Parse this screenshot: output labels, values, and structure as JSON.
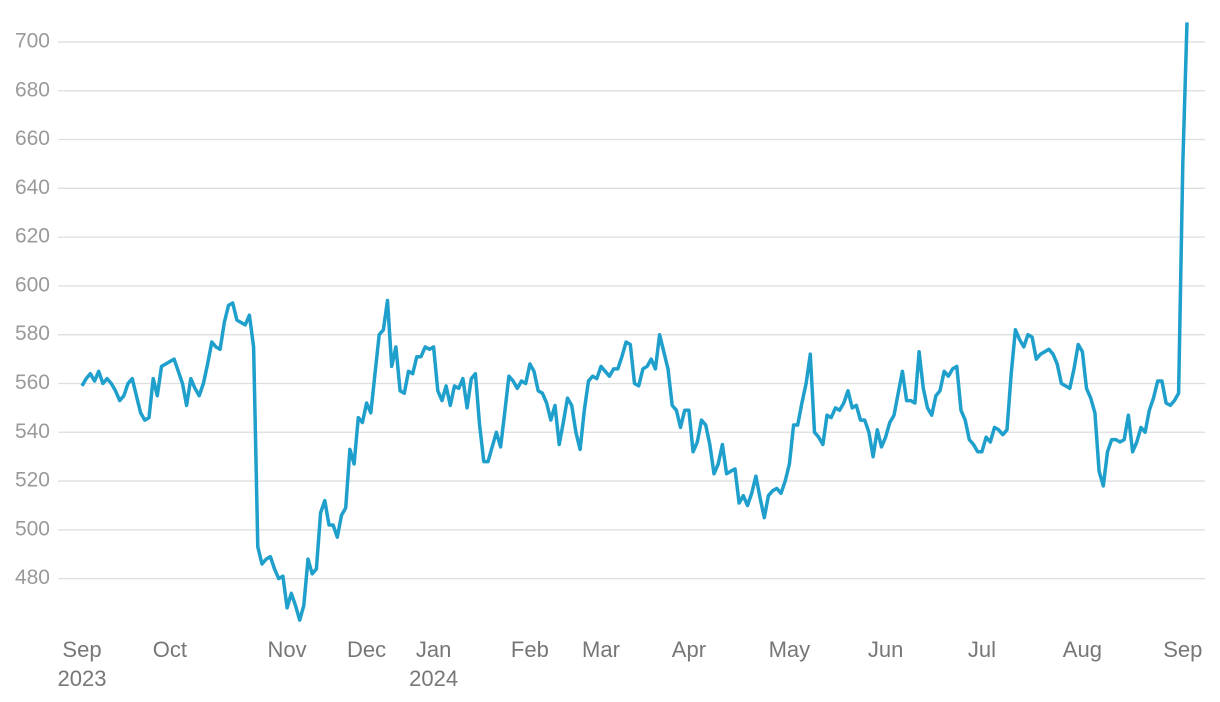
{
  "chart_data": {
    "type": "line",
    "categories": [
      "Sep 2023",
      null,
      null,
      null,
      null,
      null,
      null,
      null,
      null,
      null,
      null,
      null,
      null,
      null,
      null,
      null,
      null,
      null,
      null,
      null,
      null,
      "Oct",
      null,
      null,
      null,
      null,
      null,
      null,
      null,
      null,
      null,
      null,
      null,
      null,
      null,
      null,
      null,
      null,
      null,
      null,
      null,
      null,
      null,
      null,
      null,
      null,
      null,
      null,
      null,
      "Nov",
      null,
      null,
      null,
      null,
      null,
      null,
      null,
      null,
      null,
      null,
      null,
      null,
      null,
      null,
      null,
      null,
      null,
      null,
      "Dec",
      null,
      null,
      null,
      null,
      null,
      null,
      null,
      null,
      null,
      null,
      null,
      null,
      null,
      null,
      null,
      "Jan 2024",
      null,
      null,
      null,
      null,
      null,
      null,
      null,
      null,
      null,
      null,
      null,
      null,
      null,
      null,
      null,
      null,
      null,
      null,
      null,
      null,
      null,
      null,
      "Feb",
      null,
      null,
      null,
      null,
      null,
      null,
      null,
      null,
      null,
      null,
      null,
      null,
      null,
      null,
      null,
      null,
      "Mar",
      null,
      null,
      null,
      null,
      null,
      null,
      null,
      null,
      null,
      null,
      null,
      null,
      null,
      null,
      null,
      null,
      null,
      null,
      null,
      null,
      "Apr",
      null,
      null,
      null,
      null,
      null,
      null,
      null,
      null,
      null,
      null,
      null,
      null,
      null,
      null,
      null,
      null,
      null,
      null,
      null,
      null,
      null,
      null,
      null,
      "May",
      null,
      null,
      null,
      null,
      null,
      null,
      null,
      null,
      null,
      null,
      null,
      null,
      null,
      null,
      null,
      null,
      null,
      null,
      null,
      null,
      null,
      null,
      "Jun",
      null,
      null,
      null,
      null,
      null,
      null,
      null,
      null,
      null,
      null,
      null,
      null,
      null,
      null,
      null,
      null,
      null,
      null,
      null,
      null,
      null,
      null,
      "Jul",
      null,
      null,
      null,
      null,
      null,
      null,
      null,
      null,
      null,
      null,
      null,
      null,
      null,
      null,
      null,
      null,
      null,
      null,
      null,
      null,
      null,
      null,
      null,
      "Aug",
      null,
      null,
      null,
      null,
      null,
      null,
      null,
      null,
      null,
      null,
      null,
      null,
      null,
      null,
      null,
      null,
      null,
      null,
      null,
      null,
      null,
      null,
      null,
      "Sep",
      null
    ],
    "values": [
      559,
      562,
      564,
      561,
      565,
      560,
      562,
      560,
      557,
      553,
      555,
      560,
      562,
      555,
      548,
      545,
      546,
      562,
      555,
      567,
      568,
      569,
      570,
      565,
      560,
      551,
      562,
      558,
      555,
      560,
      568,
      577,
      575,
      574,
      585,
      592,
      593,
      586,
      585,
      584,
      588,
      575,
      493,
      486,
      488,
      489,
      484,
      480,
      481,
      468,
      474,
      469,
      463,
      469,
      488,
      482,
      484,
      507,
      512,
      502,
      502,
      497,
      506,
      509,
      533,
      527,
      546,
      544,
      552,
      548,
      564,
      580,
      582,
      594,
      567,
      575,
      557,
      556,
      565,
      564,
      571,
      571,
      575,
      574,
      575,
      557,
      553,
      559,
      551,
      559,
      558,
      562,
      550,
      562,
      564,
      543,
      528,
      528,
      534,
      540,
      534,
      548,
      563,
      561,
      558,
      561,
      560,
      568,
      565,
      557,
      556,
      552,
      545,
      551,
      535,
      544,
      554,
      551,
      540,
      533,
      549,
      561,
      563,
      562,
      567,
      565,
      563,
      566,
      566,
      571,
      577,
      576,
      560,
      559,
      566,
      567,
      570,
      566,
      580,
      573,
      566,
      551,
      549,
      542,
      549,
      549,
      532,
      536,
      545,
      543,
      535,
      523,
      527,
      535,
      523,
      524,
      525,
      511,
      514,
      510,
      515,
      522,
      513,
      505,
      514,
      516,
      517,
      515,
      520,
      527,
      543,
      543,
      552,
      560,
      572,
      540,
      538,
      535,
      547,
      546,
      550,
      549,
      552,
      557,
      550,
      551,
      545,
      545,
      540,
      530,
      541,
      534,
      538,
      544,
      547,
      556,
      565,
      553,
      553,
      552,
      573,
      558,
      550,
      547,
      555,
      557,
      565,
      563,
      566,
      567,
      549,
      545,
      537,
      535,
      532,
      532,
      538,
      536,
      542,
      541,
      539,
      541,
      564,
      582,
      578,
      575,
      580,
      579,
      570,
      572,
      573,
      574,
      572,
      568,
      560,
      559,
      558,
      566,
      576,
      573,
      558,
      554,
      548,
      524,
      518,
      532,
      537,
      537,
      536,
      537,
      547,
      532,
      536,
      542,
      540,
      549,
      554,
      561,
      561,
      552,
      551,
      553,
      556,
      650,
      708
    ],
    "color": "#1f9fcb",
    "ylim": [
      461,
      709
    ],
    "yticks": [
      480,
      500,
      520,
      540,
      560,
      580,
      600,
      620,
      640,
      660,
      680,
      700
    ],
    "grid": true
  }
}
